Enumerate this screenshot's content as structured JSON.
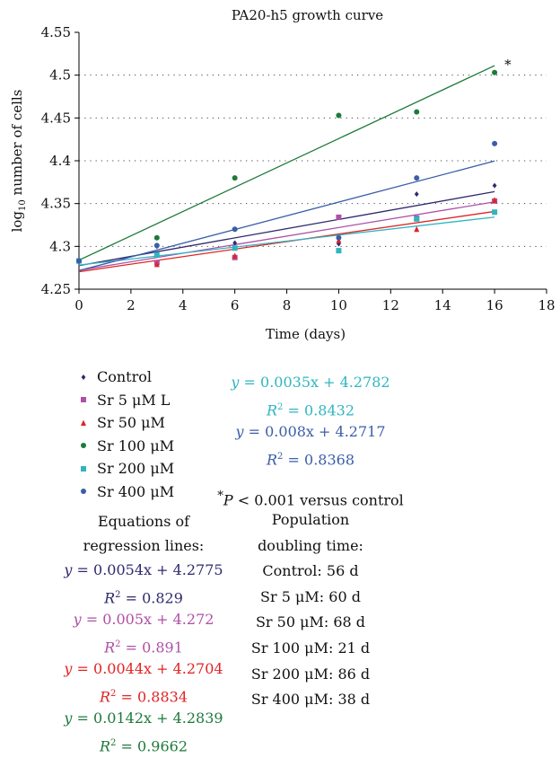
{
  "chart_data": {
    "type": "scatter",
    "title": "PA20-h5 growth curve",
    "xlabel": "Time (days)",
    "ylabel_prefix": "log",
    "ylabel_sub": "10",
    "ylabel_suffix": " number of cells",
    "xlim": [
      0,
      18
    ],
    "ylim": [
      4.25,
      4.55
    ],
    "xticks": [
      0,
      2,
      4,
      6,
      8,
      10,
      12,
      14,
      16,
      18
    ],
    "yticks": [
      4.25,
      4.3,
      4.35,
      4.4,
      4.45,
      4.5,
      4.55
    ],
    "ytick_labels": [
      "4.25",
      "4.3",
      "4.35",
      "4.4",
      "4.45",
      "4.5",
      "4.55"
    ],
    "grid": "dotted horizontal",
    "annotation": "*",
    "series": [
      {
        "name": "Control",
        "color": "#2e2a6e",
        "marker": "diamond",
        "x": [
          0,
          3,
          6,
          10,
          13,
          16
        ],
        "y": [
          4.283,
          4.3,
          4.304,
          4.303,
          4.361,
          4.371
        ],
        "fit": {
          "slope": 0.0054,
          "intercept": 4.2775
        }
      },
      {
        "name": "Sr 5 μM L",
        "color": "#b04fa6",
        "marker": "square",
        "x": [
          0,
          3,
          6,
          10,
          13,
          16
        ],
        "y": [
          4.283,
          4.281,
          4.287,
          4.334,
          4.333,
          4.353
        ],
        "fit": {
          "slope": 0.005,
          "intercept": 4.272
        }
      },
      {
        "name": "Sr 50 μM",
        "color": "#e02424",
        "marker": "triangle",
        "x": [
          0,
          3,
          6,
          10,
          13,
          16
        ],
        "y": [
          4.283,
          4.279,
          4.289,
          4.307,
          4.32,
          4.354
        ],
        "fit": {
          "slope": 0.0044,
          "intercept": 4.2704
        }
      },
      {
        "name": "Sr 100 μM",
        "color": "#1d7a3a",
        "marker": "circle",
        "x": [
          0,
          3,
          6,
          10,
          13,
          16
        ],
        "y": [
          4.283,
          4.31,
          4.38,
          4.453,
          4.457,
          4.503
        ],
        "fit": {
          "slope": 0.0142,
          "intercept": 4.2839
        }
      },
      {
        "name": "Sr 200 μM",
        "color": "#2fb5c0",
        "marker": "square",
        "x": [
          0,
          3,
          6,
          10,
          13,
          16
        ],
        "y": [
          4.283,
          4.29,
          4.298,
          4.295,
          4.332,
          4.34
        ],
        "fit": {
          "slope": 0.0035,
          "intercept": 4.2782
        }
      },
      {
        "name": "Sr 400 μM",
        "color": "#3a5ea8",
        "marker": "circle",
        "x": [
          0,
          3,
          6,
          10,
          13,
          16
        ],
        "y": [
          4.283,
          4.301,
          4.32,
          4.31,
          4.38,
          4.42
        ],
        "fit": {
          "slope": 0.008,
          "intercept": 4.2717
        }
      }
    ]
  },
  "legend": [
    {
      "label": "Control",
      "unit": "",
      "color": "#2e2a6e",
      "marker": "diamond"
    },
    {
      "label": "Sr 5 ",
      "unit": "μM L",
      "color": "#b04fa6",
      "marker": "square"
    },
    {
      "label": "Sr 50 ",
      "unit": "μM",
      "color": "#e02424",
      "marker": "triangle"
    },
    {
      "label": "Sr 100 ",
      "unit": "μM",
      "color": "#1d7a3a",
      "marker": "circle"
    },
    {
      "label": "Sr 200 ",
      "unit": "μM",
      "color": "#2fb5c0",
      "marker": "square"
    },
    {
      "label": "Sr 400 ",
      "unit": "μM",
      "color": "#3a5ea8",
      "marker": "circle"
    }
  ],
  "equations_heading": [
    "Equations of",
    "regression lines:"
  ],
  "equations": [
    {
      "eq": "= 0.0054x + 4.2775",
      "r2": "= 0.829",
      "color": "#2e2a6e"
    },
    {
      "eq": "= 0.005x + 4.272",
      "r2": "= 0.891",
      "color": "#b04fa6"
    },
    {
      "eq": "= 0.0044x + 4.2704",
      "r2": "= 0.8834",
      "color": "#e02424"
    },
    {
      "eq": "= 0.0142x + 4.2839",
      "r2": "= 0.9662",
      "color": "#1d7a3a"
    }
  ],
  "equations_right": [
    {
      "eq": "= 0.0035x + 4.2782",
      "r2": "= 0.8432",
      "color": "#2fb5c0"
    },
    {
      "eq": "= 0.008x + 4.2717",
      "r2": "= 0.8368",
      "color": "#3a5ea8"
    }
  ],
  "significance_note": {
    "star": "*",
    "p": "P",
    "rest": " < 0.001 versus control"
  },
  "doubling": {
    "heading": [
      "Population",
      "doubling time:"
    ],
    "items": [
      "Control: 56 d",
      "Sr 5 μM: 60 d",
      "Sr 50 μM: 68 d",
      "Sr 100 μM: 21 d",
      "Sr 200 μM: 86 d",
      "Sr 400 μM: 38 d"
    ]
  }
}
